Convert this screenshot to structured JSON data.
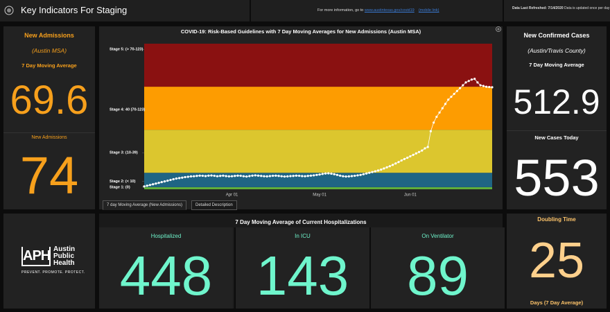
{
  "header": {
    "title": "Key Indicators For Staging",
    "info_prefix": "For more information, go to",
    "info_link": "www.austintexas.gov/covid19",
    "mobile_link": "(mobile link)",
    "refresh_label": "Data Last Refreshed:",
    "refresh_date": "7/14/2020",
    "refresh_note": "Data is updated once per day"
  },
  "admissions": {
    "title": "New Admissions",
    "region": "(Austin MSA)",
    "avg_label": "7 Day Moving Average",
    "avg_value": 69.6,
    "today_label": "New Admissions",
    "today_value": 74
  },
  "chart": {
    "type": "line",
    "title": "COVID-19: Risk-Based Guidelines with 7 Day Moving Averages for New Admissions (Austin MSA)",
    "ylim": [
      -1.5,
      100
    ],
    "yticks": [
      {
        "value": 96,
        "label": "Stage 5: (> 70-123)"
      },
      {
        "value": 54,
        "label": "Stage 4: 40 (70-123)"
      },
      {
        "value": 24,
        "label": "Stage 3: (10-39)"
      },
      {
        "value": 4,
        "label": "Stage 2: (< 10)"
      },
      {
        "value": 0,
        "label": "Stage 1: (0)"
      }
    ],
    "bands": [
      {
        "from": -1.5,
        "to": 0,
        "color": "#5fae3a"
      },
      {
        "from": 0,
        "to": 10,
        "color": "#1f6584"
      },
      {
        "from": 10,
        "to": 40,
        "color": "#dcc62e"
      },
      {
        "from": 40,
        "to": 70,
        "color": "#fd9c01"
      },
      {
        "from": 70,
        "to": 100,
        "color": "#8a1111"
      }
    ],
    "color": "#ffffff",
    "categories": [
      null,
      null,
      null,
      null,
      null,
      null,
      null,
      null,
      null,
      null,
      null,
      null,
      null,
      null,
      null,
      null,
      null,
      null,
      null,
      null,
      null,
      null,
      null,
      null,
      null,
      null,
      null,
      null,
      null,
      null,
      "Apr 01",
      null,
      null,
      null,
      null,
      null,
      null,
      null,
      null,
      null,
      null,
      null,
      null,
      null,
      null,
      null,
      null,
      null,
      null,
      null,
      null,
      null,
      null,
      null,
      null,
      null,
      null,
      null,
      null,
      null,
      "May 01",
      null,
      null,
      null,
      null,
      null,
      null,
      null,
      null,
      null,
      null,
      null,
      null,
      null,
      null,
      null,
      null,
      null,
      null,
      null,
      null,
      null,
      null,
      null,
      null,
      null,
      null,
      null,
      null,
      null,
      null,
      "Jun 01",
      null,
      null,
      null,
      null,
      null,
      null,
      null,
      null,
      null,
      null,
      null,
      null,
      null,
      null,
      null,
      null,
      null,
      null,
      null,
      null,
      null,
      null,
      null,
      null,
      null,
      null,
      null,
      null
    ],
    "values": [
      0.5,
      1,
      1.5,
      2,
      2.5,
      3,
      3.5,
      4,
      4.5,
      5,
      5.5,
      6,
      6.3,
      6.6,
      7,
      7.2,
      7.5,
      7.6,
      7.8,
      8,
      7.9,
      7.7,
      8,
      8.1,
      7.9,
      7.6,
      7.8,
      8,
      7.7,
      7.5,
      7.6,
      7.8,
      8,
      7.9,
      7.6,
      7.4,
      7.7,
      8,
      8.2,
      8,
      7.8,
      7.6,
      7.5,
      7.7,
      7.9,
      8,
      7.8,
      7.6,
      7.4,
      7.5,
      7.7,
      7.8,
      8,
      7.9,
      7.7,
      7.6,
      7.8,
      8,
      8.2,
      8.5,
      8.8,
      9.2,
      9.5,
      9.6,
      9.4,
      9,
      8.5,
      8,
      7.6,
      7.4,
      7.5,
      7.7,
      7.9,
      8.2,
      8.5,
      9,
      9.5,
      10,
      10.5,
      11,
      11.6,
      12.2,
      13,
      13.8,
      14.6,
      15.5,
      16.5,
      17.5,
      18.6,
      19.6,
      20.5,
      21.5,
      22.5,
      23.5,
      24.5,
      25.5,
      27,
      28,
      39,
      45,
      49,
      52,
      55,
      58,
      61,
      63,
      65,
      67,
      69,
      71,
      73,
      74,
      75,
      75.5,
      73,
      71,
      70.5,
      70,
      69.8,
      69.6
    ]
  },
  "tabs": [
    "7 day Moving Average (New Admissions)",
    "Detailed Description"
  ],
  "cases": {
    "title": "New Confirmed Cases",
    "region": "(Austin/Travis County)",
    "avg_label": "7 Day Moving Average",
    "avg_value": 512.9,
    "today_label": "New Cases Today",
    "today_value": 553
  },
  "logo": {
    "mark": "APH",
    "line1": "Austin",
    "line2": "Public",
    "line3": "Health",
    "tagline": "PREVENT. PROMOTE. PROTECT."
  },
  "hospitalizations": {
    "title": "7 Day Moving Average of Current Hospitalizations",
    "items": [
      {
        "label": "Hospitalized",
        "value": 448
      },
      {
        "label": "In ICU",
        "value": 143
      },
      {
        "label": "On Ventilator",
        "value": 89
      }
    ]
  },
  "doubling": {
    "title": "Doubling Time",
    "value": 25,
    "unit": "Days (7 Day Average)"
  }
}
